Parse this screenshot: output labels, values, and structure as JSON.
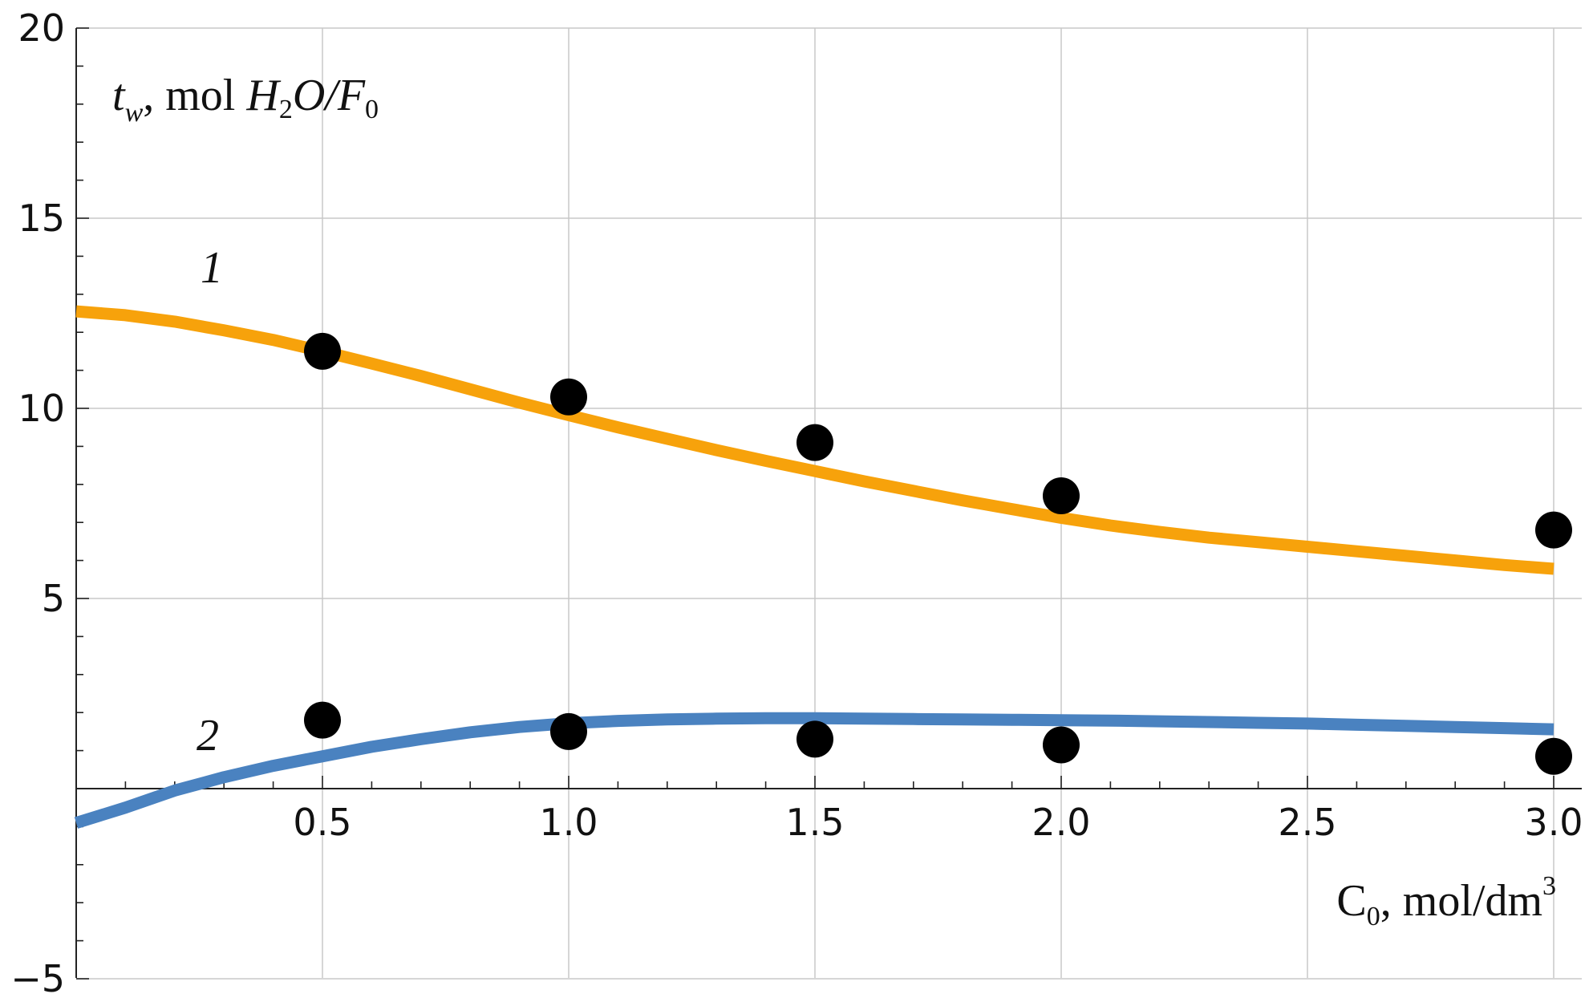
{
  "chart_data": {
    "type": "line",
    "title": "",
    "xlabel": {
      "symbol": "C",
      "subscript": "0",
      "rest": ", mol/dm",
      "superscript": "3"
    },
    "ylabel": {
      "symbol": "t",
      "subscript": "w",
      "rest_roman": ", mol ",
      "rest_italic_1": "H",
      "rest_sub_1": "2",
      "rest_italic_2": "O/F",
      "rest_sub_2": "0"
    },
    "xlim": [
      0,
      3.05
    ],
    "ylim": [
      -5,
      20
    ],
    "x_ticks": [
      0.5,
      1.0,
      1.5,
      2.0,
      2.5,
      3.0
    ],
    "x_tick_labels": [
      "0.5",
      "1.0",
      "1.5",
      "2.0",
      "2.5",
      "3.0"
    ],
    "y_ticks": [
      -5,
      5,
      10,
      15,
      20
    ],
    "y_tick_labels": [
      "−5",
      "5",
      "10",
      "15",
      "20"
    ],
    "grid": true,
    "series": [
      {
        "name": "1",
        "color": "#f7a20b",
        "curve": {
          "x": [
            0.0,
            0.1,
            0.2,
            0.3,
            0.4,
            0.5,
            0.6,
            0.7,
            0.8,
            0.9,
            1.0,
            1.1,
            1.2,
            1.3,
            1.4,
            1.5,
            1.6,
            1.7,
            1.8,
            1.9,
            2.0,
            2.1,
            2.2,
            2.3,
            2.4,
            2.5,
            2.6,
            2.7,
            2.8,
            2.9,
            3.0
          ],
          "y": [
            12.55,
            12.45,
            12.28,
            12.05,
            11.8,
            11.5,
            11.18,
            10.85,
            10.5,
            10.15,
            9.82,
            9.5,
            9.2,
            8.9,
            8.62,
            8.35,
            8.08,
            7.83,
            7.58,
            7.35,
            7.12,
            6.92,
            6.75,
            6.6,
            6.48,
            6.36,
            6.24,
            6.12,
            6.0,
            5.88,
            5.78
          ]
        },
        "points": {
          "x": [
            0.5,
            1.0,
            1.5,
            2.0,
            3.0
          ],
          "y": [
            11.5,
            10.3,
            9.1,
            7.7,
            6.8
          ]
        }
      },
      {
        "name": "2",
        "color": "#4a82c0",
        "curve": {
          "x": [
            0.0,
            0.1,
            0.2,
            0.3,
            0.4,
            0.5,
            0.6,
            0.7,
            0.8,
            0.9,
            1.0,
            1.1,
            1.2,
            1.3,
            1.4,
            1.5,
            1.6,
            1.7,
            1.8,
            1.9,
            2.0,
            2.1,
            2.2,
            2.3,
            2.4,
            2.5,
            2.6,
            2.7,
            2.8,
            2.9,
            3.0
          ],
          "y": [
            -0.9,
            -0.5,
            -0.05,
            0.3,
            0.6,
            0.85,
            1.1,
            1.3,
            1.48,
            1.62,
            1.72,
            1.78,
            1.82,
            1.84,
            1.85,
            1.85,
            1.84,
            1.83,
            1.82,
            1.81,
            1.8,
            1.79,
            1.77,
            1.75,
            1.73,
            1.71,
            1.68,
            1.65,
            1.62,
            1.59,
            1.56
          ]
        },
        "points": {
          "x": [
            0.5,
            1.0,
            1.5,
            2.0,
            3.0
          ],
          "y": [
            1.8,
            1.5,
            1.3,
            1.15,
            0.85
          ]
        }
      }
    ],
    "point_color": "#000000"
  }
}
